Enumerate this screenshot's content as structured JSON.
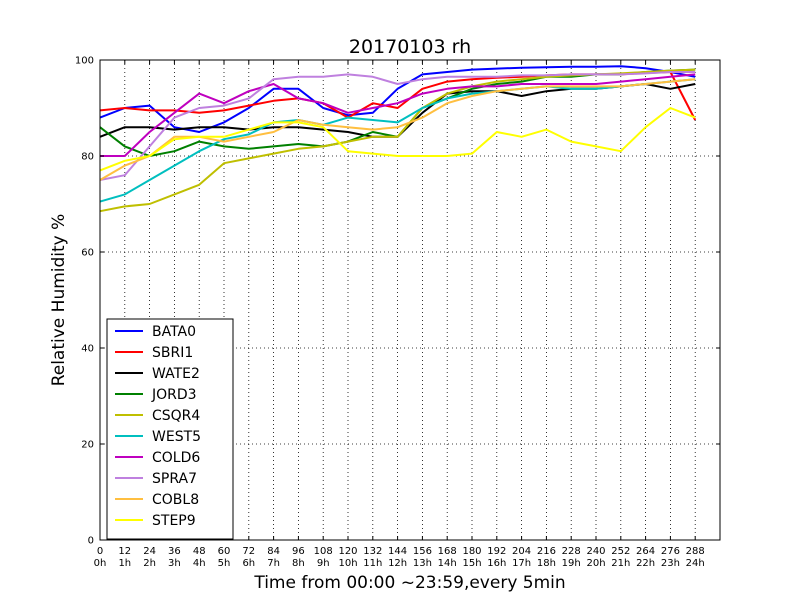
{
  "chart_data": {
    "type": "line",
    "title": "20170103 rh",
    "xlabel": "Time from 00:00 ~23:59,every 5min",
    "ylabel": "Relative Humidity %",
    "xlim": [
      0,
      300
    ],
    "ylim": [
      0,
      100
    ],
    "grid": true,
    "legend_position": "lower-left",
    "x_ticks": [
      {
        "value": 0,
        "label": "0",
        "sublabel": "0h"
      },
      {
        "value": 12,
        "label": "12",
        "sublabel": "1h"
      },
      {
        "value": 24,
        "label": "24",
        "sublabel": "2h"
      },
      {
        "value": 36,
        "label": "36",
        "sublabel": "3h"
      },
      {
        "value": 48,
        "label": "48",
        "sublabel": "4h"
      },
      {
        "value": 60,
        "label": "60",
        "sublabel": "5h"
      },
      {
        "value": 72,
        "label": "72",
        "sublabel": "6h"
      },
      {
        "value": 84,
        "label": "84",
        "sublabel": "7h"
      },
      {
        "value": 96,
        "label": "96",
        "sublabel": "8h"
      },
      {
        "value": 108,
        "label": "108",
        "sublabel": "9h"
      },
      {
        "value": 120,
        "label": "120",
        "sublabel": "10h"
      },
      {
        "value": 132,
        "label": "132",
        "sublabel": "11h"
      },
      {
        "value": 144,
        "label": "144",
        "sublabel": "12h"
      },
      {
        "value": 156,
        "label": "156",
        "sublabel": "13h"
      },
      {
        "value": 168,
        "label": "168",
        "sublabel": "14h"
      },
      {
        "value": 180,
        "label": "180",
        "sublabel": "15h"
      },
      {
        "value": 192,
        "label": "192",
        "sublabel": "16h"
      },
      {
        "value": 204,
        "label": "204",
        "sublabel": "17h"
      },
      {
        "value": 216,
        "label": "216",
        "sublabel": "18h"
      },
      {
        "value": 228,
        "label": "228",
        "sublabel": "19h"
      },
      {
        "value": 240,
        "label": "240",
        "sublabel": "20h"
      },
      {
        "value": 252,
        "label": "252",
        "sublabel": "21h"
      },
      {
        "value": 264,
        "label": "264",
        "sublabel": "22h"
      },
      {
        "value": 276,
        "label": "276",
        "sublabel": "23h"
      },
      {
        "value": 288,
        "label": "288",
        "sublabel": "24h"
      }
    ],
    "y_ticks": [
      {
        "value": 0,
        "label": "0"
      },
      {
        "value": 20,
        "label": "20"
      },
      {
        "value": 40,
        "label": "40"
      },
      {
        "value": 60,
        "label": "60"
      },
      {
        "value": 80,
        "label": "80"
      },
      {
        "value": 100,
        "label": "100"
      }
    ],
    "x": [
      0,
      12,
      24,
      36,
      48,
      60,
      72,
      84,
      96,
      108,
      120,
      132,
      144,
      156,
      168,
      180,
      192,
      204,
      216,
      228,
      240,
      252,
      264,
      276,
      288
    ],
    "series": [
      {
        "name": "BATA0",
        "color": "#0000ff",
        "values": [
          88,
          90,
          90.5,
          86,
          85,
          87,
          90,
          94,
          94,
          90,
          88.5,
          89,
          94,
          97,
          97.5,
          98,
          98.2,
          98.4,
          98.5,
          98.6,
          98.6,
          98.7,
          98.3,
          97.5,
          96.5
        ]
      },
      {
        "name": "SBRI1",
        "color": "#ff0000",
        "values": [
          89.5,
          90,
          89.5,
          89.5,
          89,
          89.5,
          90.5,
          91.5,
          92,
          91,
          88,
          91,
          90,
          94,
          95.5,
          96,
          96.3,
          96.5,
          96.8,
          97,
          97,
          97,
          97.3,
          97.5,
          87.5
        ]
      },
      {
        "name": "WATE2",
        "color": "#000000",
        "values": [
          84,
          86,
          86,
          85.5,
          86,
          86,
          85.5,
          86,
          86,
          85.5,
          85,
          84,
          84,
          89,
          93,
          93.5,
          93.5,
          92.5,
          93.5,
          94,
          94,
          94.5,
          95,
          94,
          95
        ]
      },
      {
        "name": "JORD3",
        "color": "#008000",
        "values": [
          86,
          82,
          80,
          81,
          83,
          82,
          81.5,
          82,
          82.5,
          82,
          83,
          85,
          84,
          90,
          92,
          94,
          95,
          95.5,
          96.5,
          96.5,
          97,
          97,
          97.5,
          97.8,
          98
        ]
      },
      {
        "name": "CSQR4",
        "color": "#bfbf00",
        "values": [
          68.5,
          69.5,
          70,
          72,
          74,
          78.5,
          79.5,
          80.5,
          81.5,
          82,
          83,
          84,
          84,
          90,
          93,
          94.5,
          95.5,
          96,
          96.5,
          96.8,
          97,
          97.2,
          97.5,
          97.8,
          98
        ]
      },
      {
        "name": "WEST5",
        "color": "#00bfbf",
        "values": [
          70.5,
          72,
          75,
          78,
          81,
          83.5,
          84.5,
          87,
          87.5,
          86.5,
          88,
          87.5,
          87,
          90,
          92,
          93,
          93.5,
          94,
          94.5,
          94,
          94,
          94.5,
          95,
          95.5,
          96
        ]
      },
      {
        "name": "COLD6",
        "color": "#bf00bf",
        "values": [
          80,
          80,
          85,
          89,
          93,
          91,
          93.5,
          95,
          92,
          91,
          89,
          90,
          91,
          93,
          94,
          94.5,
          94.5,
          95,
          95,
          95,
          95,
          95.5,
          96,
          96.5,
          97
        ]
      },
      {
        "name": "SPRA7",
        "color": "#bf80df",
        "values": [
          75,
          76,
          82,
          88,
          90,
          90.5,
          92,
          96,
          96.5,
          96.5,
          97,
          96.5,
          95,
          96,
          96.5,
          96.5,
          96.5,
          96.8,
          96.8,
          97,
          97,
          97,
          97.2,
          97.5,
          97.5
        ]
      },
      {
        "name": "COBL8",
        "color": "#ffbf40",
        "values": [
          75,
          78,
          80,
          84,
          84,
          83,
          84,
          85,
          87.5,
          86.5,
          86,
          85.5,
          86,
          88,
          91,
          92.5,
          93.5,
          94,
          94.5,
          94.5,
          94.5,
          94.5,
          95,
          95.5,
          96
        ]
      },
      {
        "name": "STEP9",
        "color": "#ffff00",
        "values": [
          77,
          79,
          80,
          83.5,
          84,
          84,
          85.5,
          87,
          87,
          86,
          81,
          80.5,
          80,
          80,
          80,
          80.5,
          85,
          84,
          85.5,
          83,
          82,
          81,
          86,
          90,
          88
        ]
      }
    ]
  }
}
